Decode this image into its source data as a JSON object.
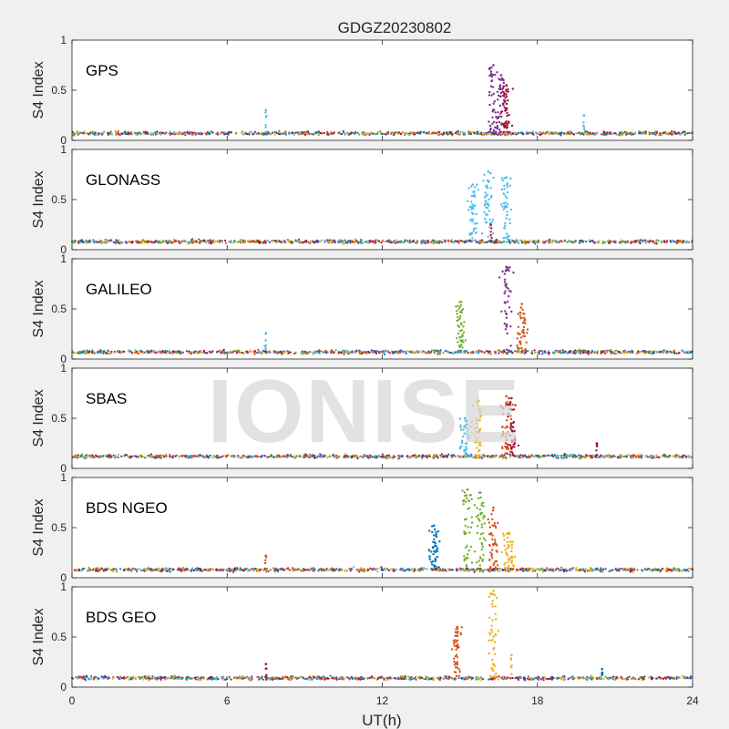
{
  "figure": {
    "title": "GDGZ20230802",
    "xlabel": "UT(h)",
    "watermark": "IONISE"
  },
  "chart_data": {
    "type": "scatter",
    "x_ticks": [
      0,
      6,
      12,
      18,
      24
    ],
    "y_ticks": [
      0,
      0.5,
      1
    ],
    "xlim": [
      0,
      24
    ],
    "ylim": [
      0,
      1
    ],
    "ylabel": "S4 Index",
    "xlabel": "UT(h)",
    "grid": false,
    "colors": [
      "#0072BD",
      "#D95319",
      "#EDB120",
      "#7E2F8E",
      "#77AC30",
      "#4DBEEE",
      "#A2142F"
    ],
    "panels": [
      {
        "name": "GPS",
        "baseline": 0.07,
        "spikes": [
          {
            "x": 7.5,
            "y": 0.3,
            "color": "#4DBEEE"
          },
          {
            "x": 16.3,
            "y": 0.75,
            "color": "#7E2F8E"
          },
          {
            "x": 16.6,
            "y": 0.65,
            "color": "#7E2F8E"
          },
          {
            "x": 16.8,
            "y": 0.55,
            "color": "#A2142F"
          },
          {
            "x": 19.8,
            "y": 0.25,
            "color": "#4DBEEE"
          }
        ]
      },
      {
        "name": "GLONASS",
        "baseline": 0.08,
        "spikes": [
          {
            "x": 15.5,
            "y": 0.65,
            "color": "#4DBEEE"
          },
          {
            "x": 16.1,
            "y": 0.78,
            "color": "#4DBEEE"
          },
          {
            "x": 16.8,
            "y": 0.72,
            "color": "#4DBEEE"
          },
          {
            "x": 16.2,
            "y": 0.25,
            "color": "#A2142F"
          }
        ]
      },
      {
        "name": "GALILEO",
        "baseline": 0.07,
        "spikes": [
          {
            "x": 7.5,
            "y": 0.26,
            "color": "#4DBEEE"
          },
          {
            "x": 15.0,
            "y": 0.57,
            "color": "#77AC30"
          },
          {
            "x": 16.8,
            "y": 0.92,
            "color": "#7E2F8E"
          },
          {
            "x": 17.4,
            "y": 0.55,
            "color": "#D95319"
          }
        ]
      },
      {
        "name": "SBAS",
        "baseline": 0.12,
        "spikes": [
          {
            "x": 15.2,
            "y": 0.5,
            "color": "#4DBEEE"
          },
          {
            "x": 15.7,
            "y": 0.68,
            "color": "#EDB120"
          },
          {
            "x": 16.8,
            "y": 0.72,
            "color": "#D95319"
          },
          {
            "x": 17.0,
            "y": 0.7,
            "color": "#A2142F"
          },
          {
            "x": 20.3,
            "y": 0.25,
            "color": "#A2142F"
          }
        ]
      },
      {
        "name": "BDS NGEO",
        "baseline": 0.08,
        "spikes": [
          {
            "x": 7.5,
            "y": 0.22,
            "color": "#D95319"
          },
          {
            "x": 14.0,
            "y": 0.52,
            "color": "#0072BD"
          },
          {
            "x": 15.3,
            "y": 0.88,
            "color": "#77AC30"
          },
          {
            "x": 15.8,
            "y": 0.85,
            "color": "#77AC30"
          },
          {
            "x": 16.3,
            "y": 0.7,
            "color": "#D95319"
          },
          {
            "x": 16.9,
            "y": 0.45,
            "color": "#EDB120"
          }
        ]
      },
      {
        "name": "BDS GEO",
        "baseline": 0.09,
        "spikes": [
          {
            "x": 7.5,
            "y": 0.23,
            "color": "#A2142F"
          },
          {
            "x": 14.9,
            "y": 0.6,
            "color": "#D95319"
          },
          {
            "x": 16.3,
            "y": 0.96,
            "color": "#EDB120"
          },
          {
            "x": 17.0,
            "y": 0.32,
            "color": "#EDB120"
          },
          {
            "x": 20.5,
            "y": 0.18,
            "color": "#0072BD"
          }
        ]
      }
    ]
  }
}
